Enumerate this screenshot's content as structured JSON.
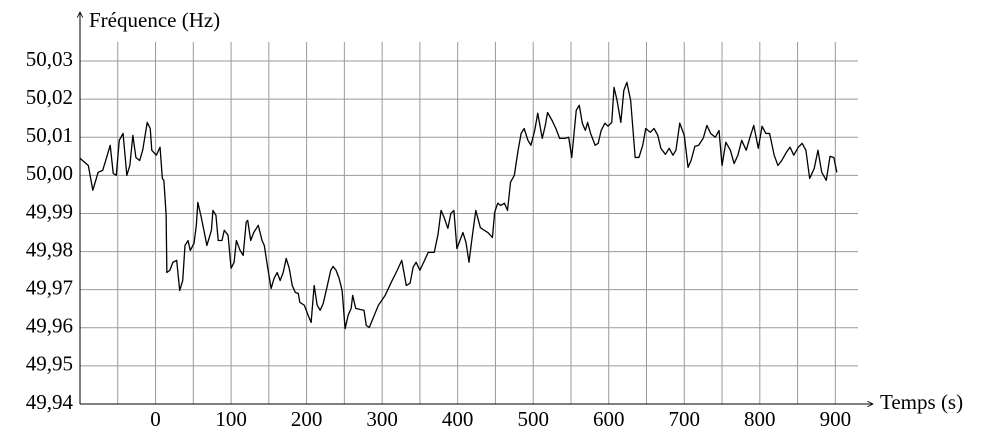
{
  "chart_data": {
    "type": "line",
    "x_label": "Temps (s)",
    "y_label": "Fréquence (Hz)",
    "color": "#000000",
    "grid": true,
    "xlim": [
      -100,
      930
    ],
    "ylim": [
      49.94,
      50.035
    ],
    "xticks": [
      0,
      100,
      200,
      300,
      400,
      500,
      600,
      700,
      800,
      900
    ],
    "xminor": [
      -50,
      50,
      150,
      250,
      350,
      450,
      550,
      650,
      750,
      850
    ],
    "yticks": [
      {
        "value": 49.94,
        "label": "49,94"
      },
      {
        "value": 49.95,
        "label": "49,95"
      },
      {
        "value": 49.96,
        "label": "49,96"
      },
      {
        "value": 49.97,
        "label": "49,97"
      },
      {
        "value": 49.98,
        "label": "49,98"
      },
      {
        "value": 49.99,
        "label": "49,99"
      },
      {
        "value": 50.0,
        "label": "50,00"
      },
      {
        "value": 50.01,
        "label": "50,01"
      },
      {
        "value": 50.02,
        "label": "50,02"
      },
      {
        "value": 50.03,
        "label": "50,03"
      }
    ],
    "x": [
      -100,
      -89,
      -83,
      -76,
      -70,
      -66,
      -60,
      -56,
      -52,
      -48,
      -43,
      -38,
      -34,
      -30,
      -26,
      -21,
      -17,
      -11,
      -7,
      -5,
      1,
      6,
      9,
      11,
      14,
      15,
      19,
      23,
      28,
      32,
      36,
      39,
      43,
      46,
      51,
      54,
      56,
      60,
      64,
      68,
      74,
      76,
      80,
      83,
      88,
      91,
      96,
      100,
      104,
      107,
      112,
      116,
      120,
      122,
      126,
      130,
      136,
      141,
      144,
      148,
      153,
      157,
      161,
      165,
      169,
      173,
      177,
      181,
      185,
      189,
      191,
      197,
      202,
      206,
      210,
      214,
      218,
      222,
      226,
      232,
      235,
      239,
      243,
      247,
      251,
      255,
      259,
      261,
      265,
      271,
      276,
      279,
      283,
      288,
      295,
      304,
      312,
      320,
      326,
      332,
      337,
      341,
      345,
      350,
      355,
      361,
      369,
      374,
      378,
      382,
      387,
      391,
      395,
      399,
      403,
      407,
      411,
      415,
      419,
      424,
      430,
      435,
      440,
      446,
      449,
      453,
      457,
      462,
      466,
      470,
      475,
      480,
      484,
      488,
      493,
      497,
      502,
      506,
      512,
      516,
      519,
      525,
      530,
      535,
      542,
      547,
      551,
      557,
      561,
      565,
      569,
      572,
      576,
      582,
      586,
      590,
      595,
      599,
      604,
      607,
      611,
      616,
      620,
      624,
      629,
      635,
      640,
      645,
      649,
      655,
      660,
      665,
      669,
      675,
      680,
      685,
      689,
      694,
      700,
      705,
      709,
      714,
      719,
      725,
      730,
      735,
      741,
      746,
      750,
      755,
      761,
      766,
      771,
      776,
      782,
      787,
      792,
      798,
      803,
      808,
      813,
      819,
      824,
      829,
      835,
      840,
      845,
      851,
      856,
      861,
      866,
      872,
      877,
      882,
      888,
      893,
      898,
      902
    ],
    "values": [
      50.0045,
      50.0026,
      49.9961,
      50.0008,
      50.0013,
      50.0039,
      50.0079,
      50.0005,
      50.0,
      50.0092,
      50.011,
      50.0,
      50.0026,
      50.0105,
      50.0047,
      50.0039,
      50.0066,
      50.0139,
      50.0123,
      50.0066,
      50.0053,
      50.0074,
      49.9992,
      49.9987,
      49.9898,
      49.9745,
      49.9751,
      49.9772,
      49.9777,
      49.9698,
      49.9724,
      49.9816,
      49.9829,
      49.9803,
      49.9822,
      49.9869,
      49.9929,
      49.9895,
      49.9856,
      49.9816,
      49.9856,
      49.9908,
      49.9895,
      49.9829,
      49.9829,
      49.9856,
      49.9843,
      49.9756,
      49.9772,
      49.9829,
      49.9803,
      49.979,
      49.9877,
      49.9882,
      49.9829,
      49.985,
      49.9869,
      49.9829,
      49.9816,
      49.9764,
      49.9703,
      49.973,
      49.9745,
      49.9724,
      49.9745,
      49.9782,
      49.9756,
      49.9711,
      49.9693,
      49.969,
      49.9667,
      49.9659,
      49.9633,
      49.9614,
      49.9711,
      49.9659,
      49.9646,
      49.9664,
      49.9698,
      49.9751,
      49.9761,
      49.9751,
      49.973,
      49.9698,
      49.9598,
      49.9633,
      49.9651,
      49.9685,
      49.9651,
      49.9648,
      49.9646,
      49.9606,
      49.9601,
      49.9625,
      49.9659,
      49.9685,
      49.9719,
      49.9751,
      49.9777,
      49.9711,
      49.9717,
      49.9759,
      49.9772,
      49.9751,
      49.9772,
      49.9798,
      49.9798,
      49.9845,
      49.9908,
      49.989,
      49.9861,
      49.99,
      49.9908,
      49.9808,
      49.9829,
      49.985,
      49.9824,
      49.9772,
      49.9835,
      49.9908,
      49.9863,
      49.9856,
      49.985,
      49.9837,
      49.9903,
      49.9927,
      49.9921,
      49.9927,
      49.9908,
      49.9982,
      50.0,
      50.0066,
      50.011,
      50.0123,
      50.0092,
      50.0079,
      50.0118,
      50.0163,
      50.0097,
      50.0131,
      50.0165,
      50.0144,
      50.0123,
      50.0097,
      50.0097,
      50.01,
      50.0047,
      50.0171,
      50.0184,
      50.0137,
      50.0118,
      50.0139,
      50.011,
      50.0079,
      50.0084,
      50.0118,
      50.0137,
      50.0129,
      50.0139,
      50.0231,
      50.0197,
      50.0139,
      50.0223,
      50.0244,
      50.0197,
      50.0047,
      50.0047,
      50.0079,
      50.0123,
      50.0113,
      50.0123,
      50.0105,
      50.0071,
      50.0055,
      50.0071,
      50.0053,
      50.0066,
      50.0137,
      50.0105,
      50.0021,
      50.0039,
      50.0076,
      50.0079,
      50.0097,
      50.0131,
      50.011,
      50.01,
      50.0118,
      50.0026,
      50.0087,
      50.0066,
      50.0031,
      50.0053,
      50.0092,
      50.0066,
      50.01,
      50.0131,
      50.0071,
      50.0129,
      50.011,
      50.011,
      50.0053,
      50.0026,
      50.0039,
      50.006,
      50.0074,
      50.0053,
      50.0074,
      50.0084,
      50.0066,
      49.9992,
      50.0018,
      50.0066,
      50.0008,
      49.9987,
      50.005,
      50.0047,
      50.0008
    ]
  }
}
